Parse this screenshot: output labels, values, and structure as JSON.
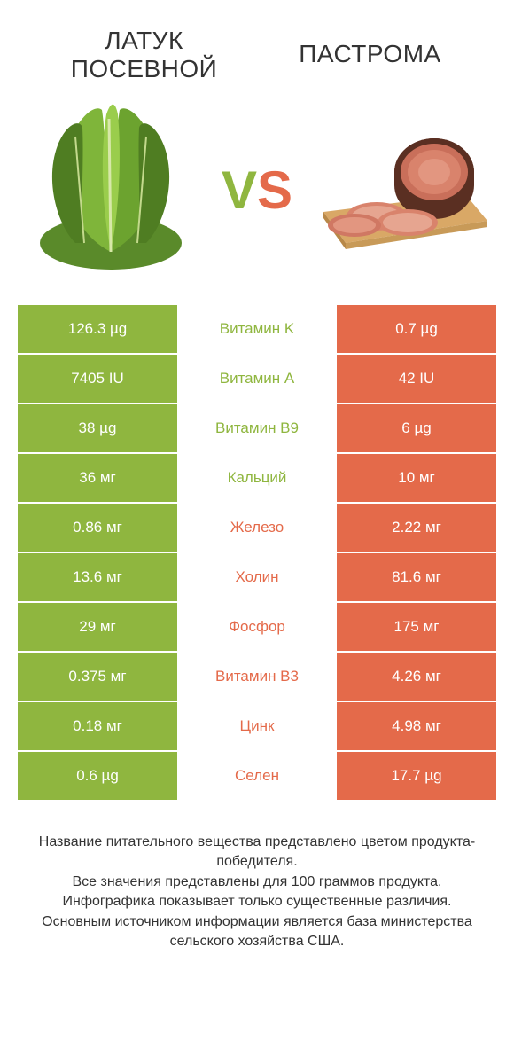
{
  "colors": {
    "green": "#8fb63f",
    "orange": "#e46a4a",
    "nutrient_green_text": "#8fb63f",
    "nutrient_orange_text": "#e46a4a",
    "white": "#ffffff",
    "text_dark": "#333333"
  },
  "header": {
    "left_title": "ЛАТУК ПОСЕВНОЙ",
    "right_title": "ПАСТРОМА",
    "vs_v": "V",
    "vs_s": "S"
  },
  "rows": [
    {
      "left": "126.3 µg",
      "name": "Витамин K",
      "right": "0.7 µg",
      "winner": "left"
    },
    {
      "left": "7405 IU",
      "name": "Витамин A",
      "right": "42 IU",
      "winner": "left"
    },
    {
      "left": "38 µg",
      "name": "Витамин B9",
      "right": "6 µg",
      "winner": "left"
    },
    {
      "left": "36 мг",
      "name": "Кальций",
      "right": "10 мг",
      "winner": "left"
    },
    {
      "left": "0.86 мг",
      "name": "Железо",
      "right": "2.22 мг",
      "winner": "right"
    },
    {
      "left": "13.6 мг",
      "name": "Холин",
      "right": "81.6 мг",
      "winner": "right"
    },
    {
      "left": "29 мг",
      "name": "Фосфор",
      "right": "175 мг",
      "winner": "right"
    },
    {
      "left": "0.375 мг",
      "name": "Витамин B3",
      "right": "4.26 мг",
      "winner": "right"
    },
    {
      "left": "0.18 мг",
      "name": "Цинк",
      "right": "4.98 мг",
      "winner": "right"
    },
    {
      "left": "0.6 µg",
      "name": "Селен",
      "right": "17.7 µg",
      "winner": "right"
    }
  ],
  "footnote": {
    "l1": "Название питательного вещества представлено цветом продукта-победителя.",
    "l2": "Все значения представлены для 100 граммов продукта.",
    "l3": "Инфографика показывает только существенные различия.",
    "l4": "Основным источником информации является база министерства сельского хозяйства США."
  }
}
